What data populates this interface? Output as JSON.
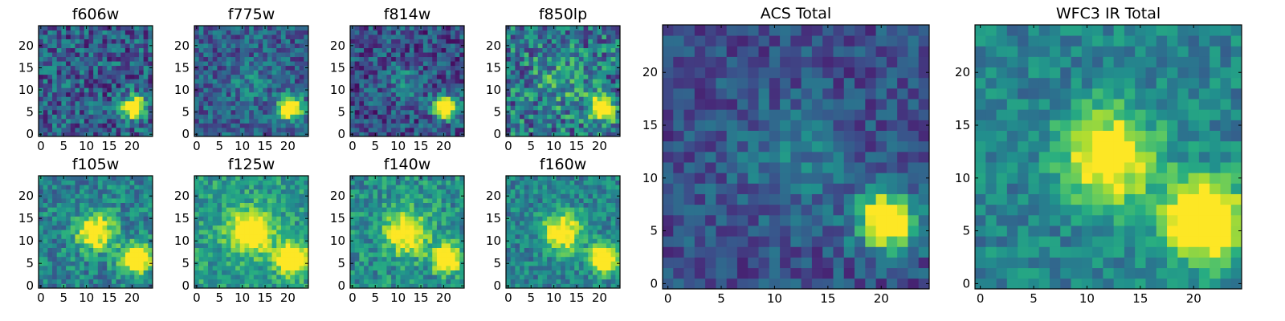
{
  "chart_data": [
    {
      "type": "heatmap",
      "title": "f606w",
      "x_ticks": [
        0,
        5,
        10,
        15,
        20
      ],
      "y_ticks": [
        0,
        5,
        10,
        15,
        20
      ],
      "xlim": [
        0,
        25
      ],
      "ylim": [
        0,
        25
      ],
      "colormap": "viridis",
      "bright_sources": [
        {
          "x": 21,
          "y": 6.5,
          "peak": 1.0,
          "spread": 1.8
        }
      ],
      "noise_level": 0.5,
      "background": 0.3
    },
    {
      "type": "heatmap",
      "title": "f775w",
      "x_ticks": [
        0,
        5,
        10,
        15,
        20
      ],
      "y_ticks": [
        0,
        5,
        10,
        15,
        20
      ],
      "xlim": [
        0,
        25
      ],
      "ylim": [
        0,
        25
      ],
      "colormap": "viridis",
      "bright_sources": [
        {
          "x": 21,
          "y": 6.5,
          "peak": 1.0,
          "spread": 1.8
        },
        {
          "x": 12,
          "y": 12,
          "peak": 0.15,
          "spread": 3
        }
      ],
      "noise_level": 0.4,
      "background": 0.3
    },
    {
      "type": "heatmap",
      "title": "f814w",
      "x_ticks": [
        0,
        5,
        10,
        15,
        20
      ],
      "y_ticks": [
        0,
        5,
        10,
        15,
        20
      ],
      "xlim": [
        0,
        25
      ],
      "ylim": [
        0,
        25
      ],
      "colormap": "viridis",
      "bright_sources": [
        {
          "x": 21,
          "y": 6.5,
          "peak": 1.0,
          "spread": 1.8
        },
        {
          "x": 12,
          "y": 12,
          "peak": 0.2,
          "spread": 3
        }
      ],
      "noise_level": 0.45,
      "background": 0.25
    },
    {
      "type": "heatmap",
      "title": "f850lp",
      "x_ticks": [
        0,
        5,
        10,
        15,
        20
      ],
      "y_ticks": [
        0,
        5,
        10,
        15,
        20
      ],
      "xlim": [
        0,
        25
      ],
      "ylim": [
        0,
        25
      ],
      "colormap": "viridis",
      "bright_sources": [
        {
          "x": 21,
          "y": 6.5,
          "peak": 1.0,
          "spread": 1.9
        },
        {
          "x": 12,
          "y": 12,
          "peak": 0.2,
          "spread": 4
        }
      ],
      "noise_level": 0.6,
      "background": 0.4
    },
    {
      "type": "heatmap",
      "title": "f105w",
      "x_ticks": [
        0,
        5,
        10,
        15,
        20
      ],
      "y_ticks": [
        0,
        5,
        10,
        15,
        20
      ],
      "xlim": [
        0,
        25
      ],
      "ylim": [
        0,
        25
      ],
      "colormap": "viridis",
      "bright_sources": [
        {
          "x": 21.5,
          "y": 6.5,
          "peak": 1.0,
          "spread": 2.2
        },
        {
          "x": 12.5,
          "y": 12.5,
          "peak": 0.75,
          "spread": 2.8
        }
      ],
      "noise_level": 0.4,
      "background": 0.45
    },
    {
      "type": "heatmap",
      "title": "f125w",
      "x_ticks": [
        0,
        5,
        10,
        15,
        20
      ],
      "y_ticks": [
        0,
        5,
        10,
        15,
        20
      ],
      "xlim": [
        0,
        25
      ],
      "ylim": [
        0,
        25
      ],
      "colormap": "viridis",
      "bright_sources": [
        {
          "x": 21.5,
          "y": 6.5,
          "peak": 1.0,
          "spread": 2.2
        },
        {
          "x": 12.5,
          "y": 12.5,
          "peak": 0.8,
          "spread": 3.2
        }
      ],
      "noise_level": 0.35,
      "background": 0.55
    },
    {
      "type": "heatmap",
      "title": "f140w",
      "x_ticks": [
        0,
        5,
        10,
        15,
        20
      ],
      "y_ticks": [
        0,
        5,
        10,
        15,
        20
      ],
      "xlim": [
        0,
        25
      ],
      "ylim": [
        0,
        25
      ],
      "colormap": "viridis",
      "bright_sources": [
        {
          "x": 21,
          "y": 6.5,
          "peak": 1.0,
          "spread": 2.0
        },
        {
          "x": 12.5,
          "y": 12.5,
          "peak": 0.7,
          "spread": 3.2
        }
      ],
      "noise_level": 0.4,
      "background": 0.5
    },
    {
      "type": "heatmap",
      "title": "f160w",
      "x_ticks": [
        0,
        5,
        10,
        15,
        20
      ],
      "y_ticks": [
        0,
        5,
        10,
        15,
        20
      ],
      "xlim": [
        0,
        25
      ],
      "ylim": [
        0,
        25
      ],
      "colormap": "viridis",
      "bright_sources": [
        {
          "x": 21.5,
          "y": 6.5,
          "peak": 1.0,
          "spread": 2.0
        },
        {
          "x": 12.5,
          "y": 12.5,
          "peak": 0.7,
          "spread": 3.0
        }
      ],
      "noise_level": 0.35,
      "background": 0.45
    },
    {
      "type": "heatmap",
      "title": "ACS Total",
      "x_ticks": [
        0,
        5,
        10,
        15,
        20
      ],
      "y_ticks": [
        0,
        5,
        10,
        15,
        20
      ],
      "xlim": [
        0,
        25
      ],
      "ylim": [
        0,
        25
      ],
      "colormap": "viridis",
      "bright_sources": [
        {
          "x": 21,
          "y": 6.5,
          "peak": 1.0,
          "spread": 1.9
        },
        {
          "x": 12,
          "y": 12,
          "peak": 0.18,
          "spread": 3.5
        }
      ],
      "noise_level": 0.3,
      "background": 0.25
    },
    {
      "type": "heatmap",
      "title": "WFC3 IR Total",
      "x_ticks": [
        0,
        5,
        10,
        15,
        20
      ],
      "y_ticks": [
        0,
        5,
        10,
        15,
        20
      ],
      "xlim": [
        0,
        25
      ],
      "ylim": [
        0,
        25
      ],
      "colormap": "viridis",
      "bright_sources": [
        {
          "x": 21.5,
          "y": 6.5,
          "peak": 1.0,
          "spread": 2.6
        },
        {
          "x": 12.5,
          "y": 12.5,
          "peak": 0.75,
          "spread": 3.0
        }
      ],
      "noise_level": 0.3,
      "background": 0.45
    }
  ]
}
